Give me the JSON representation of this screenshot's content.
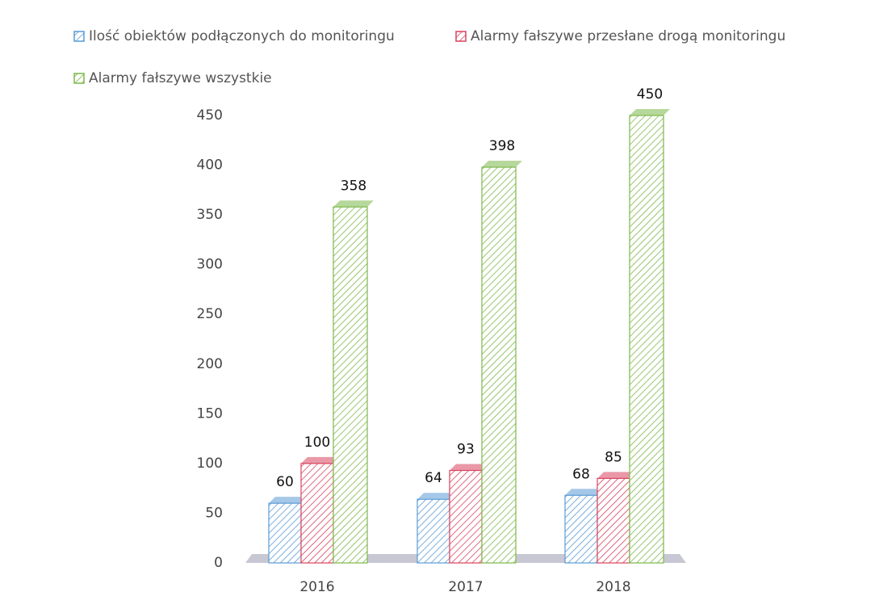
{
  "chart_data": {
    "type": "bar",
    "categories": [
      "2016",
      "2017",
      "2018"
    ],
    "series": [
      {
        "name": "Ilość obiektów podłączonych do monitoringu",
        "color": "#5b9bd5",
        "values": [
          60,
          64,
          68
        ]
      },
      {
        "name": "Alarmy fałszywe przesłane drogą monitoringu",
        "color": "#d9435e",
        "values": [
          100,
          93,
          85
        ]
      },
      {
        "name": "Alarmy fałszywe wszystkie",
        "color": "#7cb84a",
        "values": [
          358,
          398,
          450
        ]
      }
    ],
    "ylim": [
      0,
      450
    ],
    "yticks": [
      0,
      50,
      100,
      150,
      200,
      250,
      300,
      350,
      400,
      450
    ],
    "legend": "top"
  }
}
